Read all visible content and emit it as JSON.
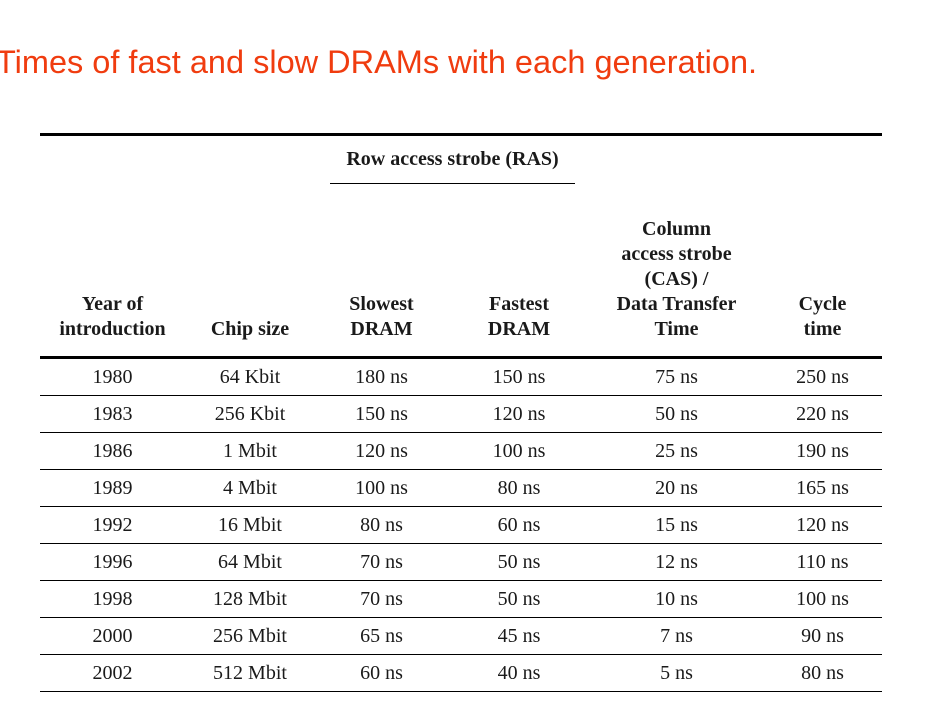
{
  "slide": {
    "title": "Times of fast and slow DRAMs with each generation."
  },
  "table": {
    "group_header": "Row access strobe (RAS)",
    "headers": {
      "year": [
        "Year of",
        "introduction"
      ],
      "chip_size": [
        "Chip size"
      ],
      "slowest": [
        "Slowest",
        "DRAM"
      ],
      "fastest": [
        "Fastest",
        "DRAM"
      ],
      "cas": [
        "Column",
        "access strobe",
        "(CAS) /",
        "Data Transfer",
        "Time"
      ],
      "cycle": [
        "Cycle",
        "time"
      ]
    },
    "rows": [
      {
        "year": "1980",
        "chip_size": "64 Kbit",
        "slowest": "180 ns",
        "fastest": "150 ns",
        "cas": "75 ns",
        "cycle": "250 ns"
      },
      {
        "year": "1983",
        "chip_size": "256 Kbit",
        "slowest": "150 ns",
        "fastest": "120 ns",
        "cas": "50 ns",
        "cycle": "220 ns"
      },
      {
        "year": "1986",
        "chip_size": "1 Mbit",
        "slowest": "120 ns",
        "fastest": "100 ns",
        "cas": "25 ns",
        "cycle": "190 ns"
      },
      {
        "year": "1989",
        "chip_size": "4 Mbit",
        "slowest": "100 ns",
        "fastest": "80 ns",
        "cas": "20 ns",
        "cycle": "165 ns"
      },
      {
        "year": "1992",
        "chip_size": "16 Mbit",
        "slowest": "80 ns",
        "fastest": "60 ns",
        "cas": "15 ns",
        "cycle": "120 ns"
      },
      {
        "year": "1996",
        "chip_size": "64 Mbit",
        "slowest": "70 ns",
        "fastest": "50 ns",
        "cas": "12 ns",
        "cycle": "110 ns"
      },
      {
        "year": "1998",
        "chip_size": "128 Mbit",
        "slowest": "70 ns",
        "fastest": "50 ns",
        "cas": "10 ns",
        "cycle": "100 ns"
      },
      {
        "year": "2000",
        "chip_size": "256 Mbit",
        "slowest": "65 ns",
        "fastest": "45 ns",
        "cas": "7 ns",
        "cycle": "90 ns"
      },
      {
        "year": "2002",
        "chip_size": "512 Mbit",
        "slowest": "60 ns",
        "fastest": "40 ns",
        "cas": "5 ns",
        "cycle": "80 ns"
      }
    ]
  },
  "colors": {
    "title": "#f03c0f",
    "text": "#1a1a1a",
    "rule": "#000000"
  }
}
